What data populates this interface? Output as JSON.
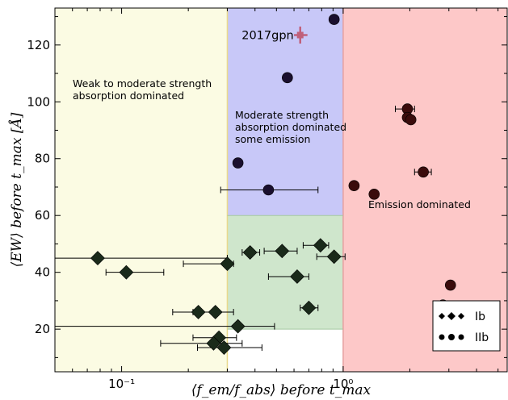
{
  "chart_data": {
    "type": "scatter",
    "title": "",
    "xlabel": "⟨f_em/f_abs⟩ before t_max",
    "ylabel": "⟨EW⟩ before t_max [Å]",
    "xscale": "log",
    "xlim": [
      0.05,
      5.5
    ],
    "ylim": [
      5,
      133
    ],
    "x_ticks": [
      0.1,
      1.0
    ],
    "x_tick_labels": [
      "10⁻¹",
      "10⁰"
    ],
    "y_ticks": [
      20,
      40,
      60,
      80,
      100,
      120
    ],
    "y_tick_labels": [
      "20",
      "40",
      "60",
      "80",
      "100",
      "120"
    ],
    "grid": false,
    "legend_position": "bottom-right",
    "regions": [
      {
        "name": "weak",
        "x": [
          0.05,
          0.3
        ],
        "y": [
          5,
          133
        ],
        "color": "#fbfbe3",
        "label": "Weak to moderate strength\nabsorption dominated"
      },
      {
        "name": "moderate",
        "x": [
          0.3,
          1.0
        ],
        "y": [
          60,
          133
        ],
        "color": "#c8c8f8",
        "label": "Moderate strength\nabsorption dominated\nsome emission"
      },
      {
        "name": "moderate-low",
        "x": [
          0.3,
          1.0
        ],
        "y": [
          20,
          60
        ],
        "color": "#cfe6cc",
        "label": ""
      },
      {
        "name": "emission",
        "x": [
          1.0,
          5.5
        ],
        "y": [
          5,
          133
        ],
        "color": "#fdc8c8",
        "label": "Emission dominated"
      }
    ],
    "annotation": {
      "text": "2017gpn",
      "x": 0.64,
      "y": 123.5,
      "xerr": [
        0.6,
        0.69
      ],
      "yerr": [
        120.5,
        126.5
      ],
      "color": "#c0607a"
    },
    "series": [
      {
        "name": "Ib",
        "marker": "diamond",
        "color": "#1a2a1a",
        "points": [
          {
            "x": 0.078,
            "y": 45,
            "xerr": [
              0.035,
              0.3
            ]
          },
          {
            "x": 0.105,
            "y": 40,
            "xerr": [
              0.085,
              0.155
            ]
          },
          {
            "x": 0.222,
            "y": 26,
            "xerr": [
              0.17,
              0.27
            ]
          },
          {
            "x": 0.265,
            "y": 26,
            "xerr": [
              0.21,
              0.32
            ]
          },
          {
            "x": 0.275,
            "y": 17,
            "xerr": [
              0.21,
              0.33
            ]
          },
          {
            "x": 0.26,
            "y": 15,
            "xerr": [
              0.15,
              0.35
            ]
          },
          {
            "x": 0.29,
            "y": 13.5,
            "xerr": [
              0.22,
              0.43
            ]
          },
          {
            "x": 0.3,
            "y": 43,
            "xerr": [
              0.19,
              0.32
            ]
          },
          {
            "x": 0.335,
            "y": 21,
            "xerr": [
              0.04,
              0.49
            ]
          },
          {
            "x": 0.38,
            "y": 47,
            "xerr": [
              0.35,
              0.42
            ]
          },
          {
            "x": 0.53,
            "y": 47.5,
            "xerr": [
              0.44,
              0.62
            ]
          },
          {
            "x": 0.62,
            "y": 38.5,
            "xerr": [
              0.46,
              0.7
            ]
          },
          {
            "x": 0.7,
            "y": 27.5,
            "xerr": [
              0.64,
              0.77
            ]
          },
          {
            "x": 0.79,
            "y": 49.5,
            "xerr": [
              0.66,
              0.86
            ]
          },
          {
            "x": 0.91,
            "y": 45.5,
            "xerr": [
              0.76,
              1.02
            ]
          }
        ]
      },
      {
        "name": "IIb",
        "marker": "circle",
        "color": "#1a0f2e",
        "points": [
          {
            "x": 0.335,
            "y": 78.5
          },
          {
            "x": 0.46,
            "y": 69,
            "xerr": [
              0.28,
              0.77
            ]
          },
          {
            "x": 0.56,
            "y": 108.5
          },
          {
            "x": 0.91,
            "y": 129
          }
        ]
      },
      {
        "name": "IIb-emission",
        "marker": "circle",
        "color": "#3a0c0c",
        "points": [
          {
            "x": 1.95,
            "y": 97.5,
            "xerr": [
              1.72,
              2.1
            ]
          },
          {
            "x": 1.95,
            "y": 94.5
          },
          {
            "x": 2.02,
            "y": 93.7
          },
          {
            "x": 2.3,
            "y": 75.3,
            "xerr": [
              2.1,
              2.5
            ]
          },
          {
            "x": 1.12,
            "y": 70.5
          },
          {
            "x": 1.38,
            "y": 67.5
          },
          {
            "x": 2.82,
            "y": 28.5
          },
          {
            "x": 3.05,
            "y": 35.5
          }
        ]
      }
    ],
    "legend": [
      {
        "label": "Ib",
        "marker": "diamond"
      },
      {
        "label": "IIb",
        "marker": "circle"
      }
    ]
  }
}
